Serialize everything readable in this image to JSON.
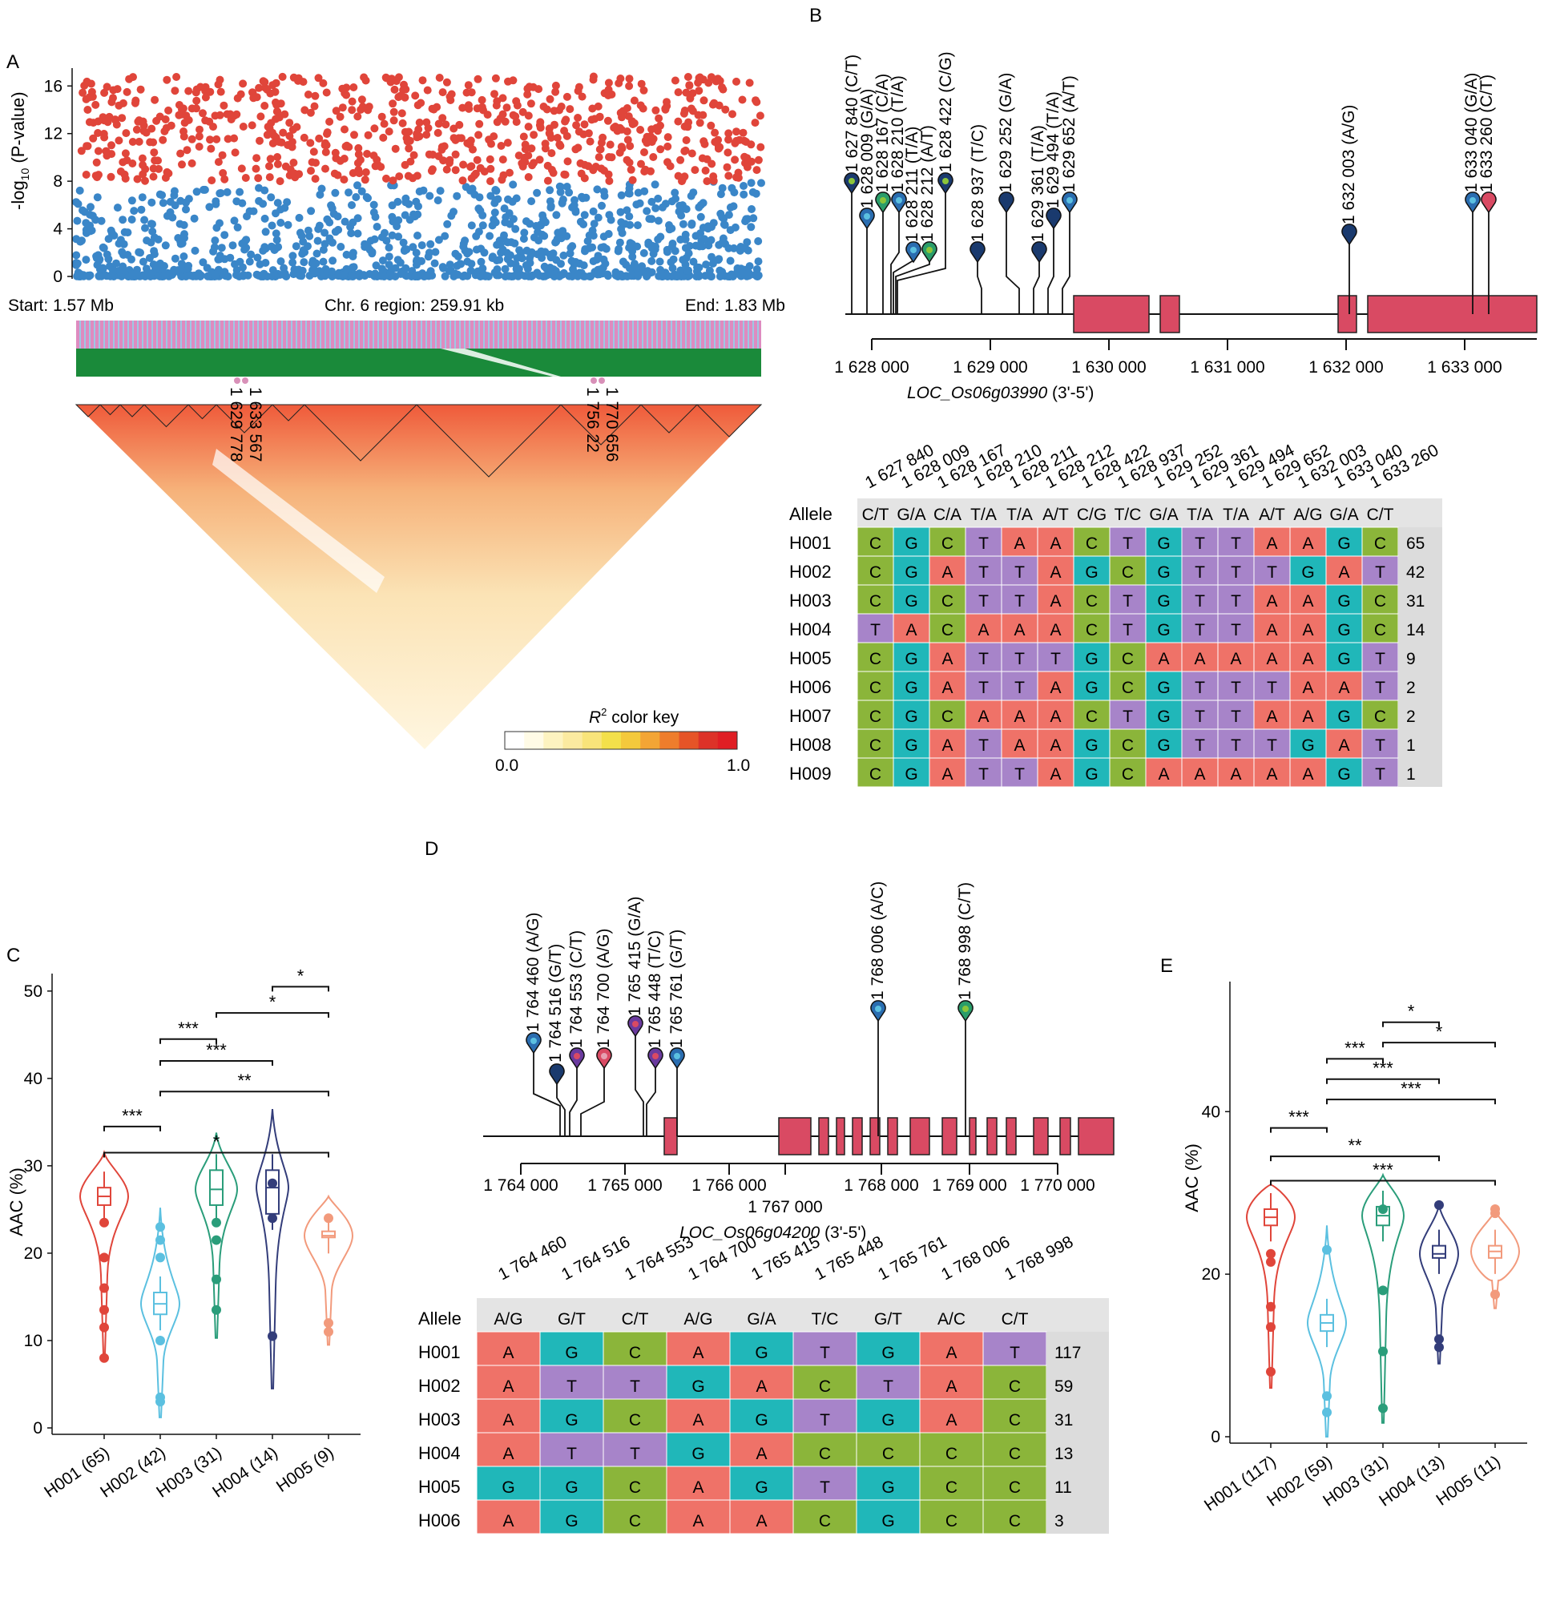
{
  "panels": {
    "A": "A",
    "B": "B",
    "C": "C",
    "D": "D",
    "E": "E"
  },
  "colors": {
    "sig": "#e0453a",
    "nonsig": "#3a86c8",
    "gene": "#d94a63",
    "ld_green": "#1a8a3a",
    "base_A": "#ef7268",
    "base_C": "#8bb53a",
    "base_G": "#20b7b9",
    "base_T": "#a784c9",
    "count_bg": "#dcdcdc",
    "header_bg": "#e4e4e4",
    "h1": "#e0453a",
    "h2": "#5bc0e0",
    "h3": "#2a9d7a",
    "h4": "#333d7a",
    "h5": "#f29a7c"
  },
  "chart_data": [
    {
      "panel": "A",
      "type": "scatter",
      "ylabel_main": "-log",
      "ylabel_sub": "10",
      "ylabel_rest": " (P-value)",
      "yticks": [
        "0",
        "4",
        "8",
        "12",
        "16"
      ],
      "ylim": [
        0,
        17.5
      ],
      "start_label": "Start: 1.57 Mb",
      "region_label": "Chr. 6 region: 259.91 kb",
      "end_label": "End: 1.83 Mb",
      "threshold": 8,
      "ld_marks": [
        {
          "lines": [
            "1 633 567",
            "1 629 778"
          ]
        },
        {
          "lines": [
            "1 770 656",
            "1 756 22"
          ]
        }
      ],
      "color_key_title": "R",
      "color_key_sup": "2",
      "color_key_rest": " color key",
      "color_key_min": "0.0",
      "color_key_max": "1.0",
      "color_key_scale": [
        "#ffffff",
        "#fffbe6",
        "#fdf3c0",
        "#fbeaa0",
        "#f8e47a",
        "#f3e04a",
        "#f4c93c",
        "#f3a535",
        "#ee7d2c",
        "#e65427",
        "#dd3228",
        "#e01e24"
      ]
    },
    {
      "panel": "B",
      "type": "table",
      "gene_label": "LOC_Os06g03990",
      "gene_suffix": " (3'-5')",
      "axis_ticks": [
        "1 628 000",
        "1 629 000",
        "1 630 000",
        "1 631 000",
        "1 632 000",
        "1 633 000"
      ],
      "snp_labels": [
        "1 627 840 (C/T)",
        "1 628 009 (G/A)",
        "1 628 167 (C/A)",
        "1 628 210 (T/A)",
        "1 628 211 (T/A)",
        "1 628 212 (A/T)",
        "1 628 422 (C/G)",
        "1 628 937 (T/C)",
        "1 629 252 (G/A)",
        "1 629 361 (T/A)",
        "1 629 494 (T/A)",
        "1 629 652 (A/T)",
        "1 632 003 (A/G)",
        "1 633 040 (G/A)",
        "1 633 260 (C/T)"
      ],
      "positions": [
        "1 627 840",
        "1 628 009",
        "1 628 167",
        "1 628 210",
        "1 628 211",
        "1 628 212",
        "1 628 422",
        "1 628 937",
        "1 629 252",
        "1 629 361",
        "1 629 494",
        "1 629 652",
        "1 632 003",
        "1 633 040",
        "1 633 260"
      ],
      "allele_header": "Allele",
      "alleles": [
        "C/T",
        "G/A",
        "C/A",
        "T/A",
        "T/A",
        "A/T",
        "C/G",
        "T/C",
        "G/A",
        "T/A",
        "T/A",
        "A/T",
        "A/G",
        "G/A",
        "C/T"
      ],
      "rows": [
        {
          "name": "H001",
          "bases": "CGCTAACTGTTAAGC",
          "count": "65"
        },
        {
          "name": "H002",
          "bases": "CGATTAGCGTTTGAT",
          "count": "42"
        },
        {
          "name": "H003",
          "bases": "CGCTTACTGTTAAGC",
          "count": "31"
        },
        {
          "name": "H004",
          "bases": "TACAAACTGTTAAGC",
          "count": "14"
        },
        {
          "name": "H005",
          "bases": "CGATTTGCAAAAAGT",
          "count": "9"
        },
        {
          "name": "H006",
          "bases": "CGATTAGCGTTTAAT",
          "count": "2"
        },
        {
          "name": "H007",
          "bases": "CGCAAACTGTTAAGC",
          "count": "2"
        },
        {
          "name": "H008",
          "bases": "CGATAAGCGTTTGAT",
          "count": "1"
        },
        {
          "name": "H009",
          "bases": "CGATTAGCAAAAAGT",
          "count": "1"
        }
      ]
    },
    {
      "panel": "C",
      "type": "violin",
      "ylabel": "AAC (%)",
      "yticks": [
        "0",
        "10",
        "20",
        "30",
        "40",
        "50"
      ],
      "ylim": [
        0,
        52
      ],
      "categories": [
        "H001 (65)",
        "H002 (42)",
        "H003 (31)",
        "H004 (14)",
        "H005 (9)"
      ],
      "medians": [
        26.5,
        14.2,
        27.3,
        27.5,
        22
      ],
      "q1": [
        25.5,
        13,
        25.5,
        24.5,
        21.8
      ],
      "q3": [
        27.5,
        15.5,
        29.5,
        29.5,
        22.5
      ],
      "comparisons": [
        {
          "from": 4,
          "to": 5,
          "level": 50.5,
          "label": "*"
        },
        {
          "from": 3,
          "to": 5,
          "level": 47.5,
          "label": "*"
        },
        {
          "from": 2,
          "to": 3,
          "level": 44.5,
          "label": "***"
        },
        {
          "from": 2,
          "to": 4,
          "level": 42,
          "label": "***"
        },
        {
          "from": 2,
          "to": 5,
          "level": 38.5,
          "label": "**"
        },
        {
          "from": 1,
          "to": 2,
          "level": 34.5,
          "label": "***"
        },
        {
          "from": 1,
          "to": 5,
          "level": 31.5,
          "label": "*"
        }
      ]
    },
    {
      "panel": "D",
      "type": "table",
      "gene_label": "LOC_Os06g04200",
      "gene_suffix": " (3'-5')",
      "axis_ticks": [
        "1 764 000",
        "1 765 000",
        "1 766 000",
        "1 767 000",
        "1 768 000",
        "1 769 000",
        "1 770 000"
      ],
      "snp_labels": [
        "1 764 460 (A/G)",
        "1 764 516 (G/T)",
        "1 764 553 (C/T)",
        "1 764 700 (A/G)",
        "1 765 415 (G/A)",
        "1 765 448 (T/C)",
        "1 765 761 (G/T)",
        "1 768 006 (A/C)",
        "1 768 998 (C/T)"
      ],
      "positions": [
        "1 764 460",
        "1 764 516",
        "1 764 553",
        "1 764 700",
        "1 765 415",
        "1 765 448",
        "1 765 761",
        "1 768 006",
        "1 768 998"
      ],
      "allele_header": "Allele",
      "alleles": [
        "A/G",
        "G/T",
        "C/T",
        "A/G",
        "G/A",
        "T/C",
        "G/T",
        "A/C",
        "C/T"
      ],
      "rows": [
        {
          "name": "H001",
          "bases": "AGCAGTGAT",
          "count": "117"
        },
        {
          "name": "H002",
          "bases": "ATTGACTAC",
          "count": "59"
        },
        {
          "name": "H003",
          "bases": "AGCAGTGAC",
          "count": "31"
        },
        {
          "name": "H004",
          "bases": "ATTGACCCC",
          "count": "13"
        },
        {
          "name": "H005",
          "bases": "GGCAGTGCC",
          "count": "11"
        },
        {
          "name": "H006",
          "bases": "AGCAACGCC",
          "count": "3"
        }
      ]
    },
    {
      "panel": "E",
      "type": "violin",
      "ylabel": "AAC (%)",
      "yticks": [
        "0",
        "20",
        "40"
      ],
      "ylim": [
        0,
        56
      ],
      "categories": [
        "H001 (117)",
        "H002 (59)",
        "H003 (31)",
        "H004 (13)",
        "H005 (11)"
      ],
      "medians": [
        27,
        14,
        27.2,
        22.5,
        22.8
      ],
      "q1": [
        26,
        13,
        26,
        22,
        22
      ],
      "q3": [
        28,
        15,
        28.3,
        23.5,
        23.5
      ],
      "comparisons": [
        {
          "from": 3,
          "to": 4,
          "level": 51,
          "label": "*"
        },
        {
          "from": 3,
          "to": 5,
          "level": 48.5,
          "label": "*"
        },
        {
          "from": 2,
          "to": 3,
          "level": 46.5,
          "label": "***"
        },
        {
          "from": 2,
          "to": 4,
          "level": 44,
          "label": "***"
        },
        {
          "from": 2,
          "to": 5,
          "level": 41.5,
          "label": "***"
        },
        {
          "from": 1,
          "to": 2,
          "level": 38,
          "label": "***"
        },
        {
          "from": 1,
          "to": 4,
          "level": 34.5,
          "label": "**"
        },
        {
          "from": 1,
          "to": 5,
          "level": 31.5,
          "label": "***"
        }
      ]
    }
  ]
}
